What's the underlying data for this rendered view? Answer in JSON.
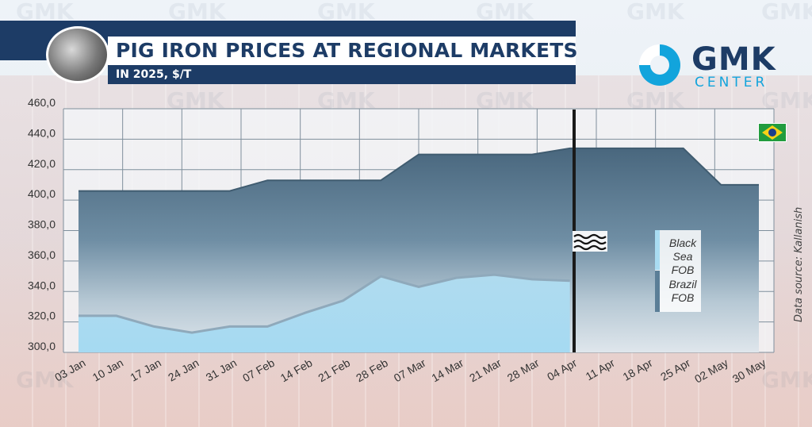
{
  "header": {
    "title": "PIG IRON PRICES AT REGIONAL MARKETS",
    "subtitle": "IN 2025, $/T"
  },
  "logo": {
    "name": "GMK",
    "sub": "CENTER"
  },
  "watermark_text": "GMK",
  "source_note": "Data source: Kallanish",
  "colors": {
    "navy": "#1d3c66",
    "brazil_fill_top": "#49677e",
    "black_sea_fill": "#a9dcf2",
    "black_sea_line": "#8fa9bb",
    "accent": "#12a4dc"
  },
  "icons": {
    "product": "pig-iron-photo",
    "brand": "gmk-logo-ring",
    "flag": "brazil-flag",
    "break": "sea-waves-icon"
  },
  "chart_data": {
    "type": "area",
    "title": "PIG IRON PRICES AT REGIONAL MARKETS",
    "subtitle": "IN 2025, $/T",
    "ylim": [
      300,
      460
    ],
    "y_ticks": [
      "300,0",
      "320,0",
      "340,0",
      "360,0",
      "380,0",
      "400,0",
      "420,0",
      "440,0",
      "460,0"
    ],
    "y_tick_values": [
      300,
      320,
      340,
      360,
      380,
      400,
      420,
      440,
      460
    ],
    "categories": [
      "03 Jan",
      "10 Jan",
      "17 Jan",
      "24 Jan",
      "31 Jan",
      "07 Feb",
      "14 Feb",
      "21 Feb",
      "28 Feb",
      "07 Mar",
      "14 Mar",
      "21 Mar",
      "28 Mar",
      "04 Apr",
      "11 Apr",
      "18 Apr",
      "25 Apr",
      "02 May",
      "30 May"
    ],
    "series": [
      {
        "name": "Brazil FOB",
        "name_lines": [
          "Brazil",
          "FOB"
        ],
        "values": [
          406,
          406,
          406,
          406,
          406,
          413,
          413,
          413,
          413,
          430,
          430,
          430,
          430,
          434,
          434,
          434,
          434,
          410,
          410
        ]
      },
      {
        "name": "Black Sea FOB",
        "name_lines": [
          "Black",
          "Sea FOB"
        ],
        "values": [
          324,
          324,
          317,
          313,
          317,
          317,
          326,
          334,
          350,
          343,
          349,
          351,
          348,
          347,
          null,
          null,
          null,
          null,
          null
        ]
      }
    ],
    "legend": "right"
  }
}
